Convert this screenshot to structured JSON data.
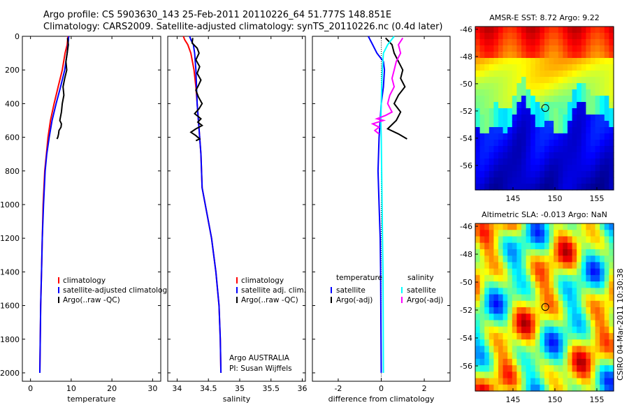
{
  "header": {
    "line1": "Argo profile: CS 5903630_143 25-Feb-2011 20110226_64 51.777S 148.851E",
    "line2": "Climatology: CARS2009. Satellite-adjusted climatology: synTS_20110226.nc (0.4d later)"
  },
  "colors": {
    "climatology": "#ff0000",
    "satellite": "#0000ff",
    "argo": "#000000",
    "sal_satellite": "#00ffff",
    "sal_argo": "#ff00ff"
  },
  "chart_data": [
    {
      "type": "line",
      "panel": "temperature",
      "xlabel": "temperature",
      "ylabel": "",
      "xlim": [
        -2,
        32
      ],
      "ylim": [
        2050,
        0
      ],
      "xticks": [
        0,
        10,
        20,
        30
      ],
      "yticks": [
        0,
        200,
        400,
        600,
        800,
        1000,
        1200,
        1400,
        1600,
        1800,
        2000
      ],
      "legend_labels": [
        "climatology",
        "satellite-adjusted climatolog",
        "Argo(..raw -QC)"
      ],
      "series": [
        {
          "key": "climatology",
          "color": "#ff0000",
          "x": [
            9.2,
            9.0,
            8.5,
            7.8,
            6.8,
            5.8,
            4.9,
            4.3,
            3.9,
            3.5,
            3.1,
            2.9,
            2.7,
            2.5,
            2.4,
            2.35,
            2.3
          ],
          "y": [
            0,
            50,
            100,
            200,
            300,
            400,
            500,
            600,
            700,
            800,
            1000,
            1200,
            1400,
            1600,
            1800,
            1900,
            2000
          ]
        },
        {
          "key": "satellite",
          "color": "#0000ff",
          "x": [
            9.4,
            9.2,
            9.0,
            8.4,
            7.4,
            6.3,
            5.3,
            4.6,
            4.0,
            3.6,
            3.2,
            2.9,
            2.7,
            2.5,
            2.4,
            2.35,
            2.3
          ],
          "y": [
            0,
            50,
            100,
            200,
            300,
            400,
            500,
            600,
            700,
            800,
            1000,
            1200,
            1400,
            1600,
            1800,
            1900,
            2000
          ]
        },
        {
          "key": "argo",
          "color": "#000000",
          "x": [
            9.1,
            9.3,
            9.0,
            8.7,
            8.9,
            8.4,
            8.0,
            8.2,
            7.8,
            7.6,
            7.2,
            7.6,
            7.5,
            7.0,
            6.9,
            6.7,
            6.5
          ],
          "y": [
            10,
            50,
            100,
            150,
            200,
            250,
            300,
            350,
            400,
            450,
            500,
            520,
            540,
            560,
            580,
            600,
            610
          ]
        }
      ]
    },
    {
      "type": "line",
      "panel": "salinity",
      "xlabel": "salinity",
      "xlim": [
        33.85,
        36.05
      ],
      "ylim": [
        2050,
        0
      ],
      "xticks": [
        34,
        34.5,
        35,
        35.5,
        36
      ],
      "legend_labels": [
        "climatology",
        "satellite adj. clim.",
        "Argo(..raw -QC)"
      ],
      "annotation": [
        "Argo AUSTRALIA",
        "PI: Susan Wijffels"
      ],
      "series": [
        {
          "key": "climatology",
          "color": "#ff0000",
          "x": [
            34.1,
            34.12,
            34.17,
            34.22,
            34.27,
            34.3,
            34.32,
            34.34,
            34.36,
            34.38,
            34.4,
            34.45,
            34.55,
            34.62,
            34.67,
            34.69,
            34.7
          ],
          "y": [
            0,
            20,
            50,
            100,
            200,
            300,
            400,
            500,
            600,
            700,
            900,
            1000,
            1200,
            1400,
            1600,
            1800,
            2000
          ]
        },
        {
          "key": "satellite",
          "color": "#0000ff",
          "x": [
            34.2,
            34.22,
            34.26,
            34.28,
            34.3,
            34.31,
            34.32,
            34.34,
            34.36,
            34.38,
            34.4,
            34.45,
            34.55,
            34.62,
            34.67,
            34.69,
            34.7
          ],
          "y": [
            0,
            20,
            50,
            100,
            200,
            300,
            400,
            500,
            600,
            700,
            900,
            1000,
            1200,
            1400,
            1600,
            1800,
            2000
          ]
        },
        {
          "key": "argo",
          "color": "#000000",
          "x": [
            34.25,
            34.24,
            34.32,
            34.35,
            34.3,
            34.36,
            34.32,
            34.38,
            34.33,
            34.3,
            34.34,
            34.4,
            34.35,
            34.28,
            34.38,
            34.33,
            34.4,
            34.3,
            34.22,
            34.3,
            34.36,
            34.3
          ],
          "y": [
            10,
            40,
            70,
            100,
            140,
            180,
            220,
            260,
            300,
            320,
            360,
            400,
            430,
            460,
            490,
            510,
            530,
            550,
            570,
            590,
            610,
            620
          ]
        }
      ]
    },
    {
      "type": "line",
      "panel": "difference",
      "xlabel": "difference from climatology",
      "xlim": [
        -3.2,
        3.2
      ],
      "ylim": [
        2050,
        0
      ],
      "xticks": [
        -2,
        0,
        2
      ],
      "legend_labels": [
        "temperature",
        "satellite",
        "Argo(-adj)",
        "salinity",
        "satellite",
        "Argo(-adj)"
      ],
      "series": [
        {
          "key": "temp_satellite",
          "color": "#0000ff",
          "x": [
            -0.6,
            -0.4,
            -0.2,
            0.1,
            0.15,
            0.1,
            0.0,
            -0.05,
            -0.1,
            -0.15,
            -0.1,
            -0.05,
            -0.03,
            -0.02,
            -0.01,
            0.0
          ],
          "y": [
            0,
            50,
            100,
            150,
            200,
            300,
            400,
            500,
            600,
            800,
            1000,
            1200,
            1400,
            1600,
            1800,
            2000
          ]
        },
        {
          "key": "temp_argo",
          "color": "#000000",
          "x": [
            0.2,
            0.5,
            0.6,
            0.8,
            1.0,
            0.9,
            1.1,
            0.8,
            0.6,
            0.9,
            0.7,
            0.3,
            0.8,
            1.2
          ],
          "y": [
            10,
            50,
            100,
            150,
            200,
            250,
            300,
            350,
            400,
            450,
            500,
            550,
            580,
            610
          ]
        },
        {
          "key": "sal_satellite",
          "color": "#00ffff",
          "x": [
            0.6,
            0.3,
            0.1,
            0.05,
            0.02,
            0.0,
            -0.02,
            0.0,
            0.02,
            0.04,
            0.06,
            0.08,
            0.09,
            0.1
          ],
          "y": [
            0,
            50,
            100,
            200,
            300,
            400,
            500,
            600,
            800,
            1000,
            1200,
            1400,
            1700,
            2000
          ]
        },
        {
          "key": "sal_argo",
          "color": "#ff00ff",
          "x": [
            1.0,
            0.8,
            0.9,
            0.7,
            0.6,
            0.5,
            0.6,
            0.4,
            0.3,
            0.5,
            0.2,
            -0.2,
            0.1,
            -0.4,
            -0.1,
            -0.3,
            -0.1
          ],
          "y": [
            10,
            50,
            100,
            150,
            200,
            250,
            300,
            350,
            400,
            450,
            470,
            490,
            500,
            520,
            540,
            560,
            580
          ]
        }
      ]
    },
    {
      "type": "heatmap",
      "panel": "sst-map",
      "title": "AMSR-E SST: 8.72 Argo: 9.22",
      "xlim": [
        140.5,
        157
      ],
      "ylim": [
        -57.8,
        -45.8
      ],
      "xticks": [
        145,
        150,
        155
      ],
      "yticks": [
        -46,
        -48,
        -50,
        -52,
        -54,
        -56
      ],
      "marker": {
        "lon": 148.85,
        "lat": -51.78
      }
    },
    {
      "type": "heatmap",
      "panel": "sla-map",
      "title": "Altimetric SLA: -0.013 Argo: NaN",
      "xlim": [
        140.5,
        157
      ],
      "ylim": [
        -57.8,
        -45.8
      ],
      "xticks": [
        145,
        150,
        155
      ],
      "yticks": [
        -46,
        -48,
        -50,
        -52,
        -54,
        -56
      ],
      "marker": {
        "lon": 148.85,
        "lat": -51.78
      }
    }
  ],
  "side_label": "CSIRO 04-Mar-2011 10:30:38"
}
